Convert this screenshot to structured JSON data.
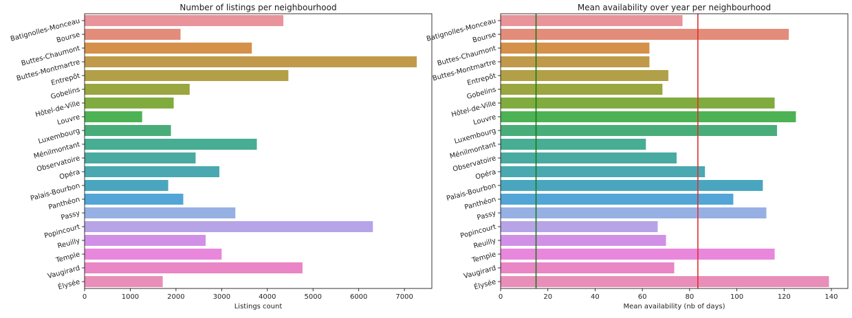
{
  "chart_data": [
    {
      "type": "bar",
      "orientation": "horizontal",
      "title": "Number of listings per neighbourhood",
      "xlabel": "Listings count",
      "ylabel": "",
      "xlim": [
        0,
        7600
      ],
      "xticks": [
        0,
        1000,
        2000,
        3000,
        4000,
        5000,
        6000,
        7000
      ],
      "categories": [
        "Batignolles-Monceau",
        "Bourse",
        "Buttes-Chaumont",
        "Buttes-Montmartre",
        "Entrepôt",
        "Gobelins",
        "Hôtel-de-Ville",
        "Louvre",
        "Luxembourg",
        "Ménilmontant",
        "Observatoire",
        "Opéra",
        "Palais-Bourbon",
        "Panthéon",
        "Passy",
        "Popincourt",
        "Reuilly",
        "Temple",
        "Vaugirard",
        "Élysée"
      ],
      "values": [
        4350,
        2100,
        3660,
        7270,
        4460,
        2300,
        1950,
        1260,
        1890,
        3770,
        2430,
        2950,
        1830,
        2160,
        3300,
        6310,
        2650,
        3000,
        4770,
        1710
      ],
      "grid": false
    },
    {
      "type": "bar",
      "orientation": "horizontal",
      "title": "Mean availability over year per neighbourhood",
      "xlabel": "Mean availability (nb of days)",
      "ylabel": "",
      "xlim": [
        0,
        147
      ],
      "xticks": [
        0,
        20,
        40,
        60,
        80,
        100,
        120,
        140
      ],
      "categories": [
        "Batignolles-Monceau",
        "Bourse",
        "Buttes-Chaumont",
        "Buttes-Montmartre",
        "Entrepôt",
        "Gobelins",
        "Hôtel-de-Ville",
        "Louvre",
        "Luxembourg",
        "Ménilmontant",
        "Observatoire",
        "Opéra",
        "Palais-Bourbon",
        "Panthéon",
        "Passy",
        "Popincourt",
        "Reuilly",
        "Temple",
        "Vaugirard",
        "Élysée"
      ],
      "values": [
        77,
        122,
        63,
        63,
        71,
        68.5,
        116,
        125,
        117,
        61.5,
        74.5,
        86.5,
        111,
        98.5,
        112.5,
        66.5,
        70,
        116,
        73.5,
        139
      ],
      "reference_lines": [
        {
          "value": 15,
          "color": "#1a7a1a"
        },
        {
          "value": 83.5,
          "color": "#e03030"
        }
      ],
      "grid": false
    }
  ],
  "colors": [
    "#e9939a",
    "#e48c7a",
    "#d5904a",
    "#c09a4a",
    "#b1a047",
    "#9aa63f",
    "#80ab3f",
    "#4db253",
    "#48ad79",
    "#47ad93",
    "#48aaa0",
    "#4aa9b0",
    "#4aa6be",
    "#52a5d6",
    "#97b0e4",
    "#b6a4e7",
    "#d190e6",
    "#e987dc",
    "#ea85c6",
    "#e88eb9"
  ]
}
